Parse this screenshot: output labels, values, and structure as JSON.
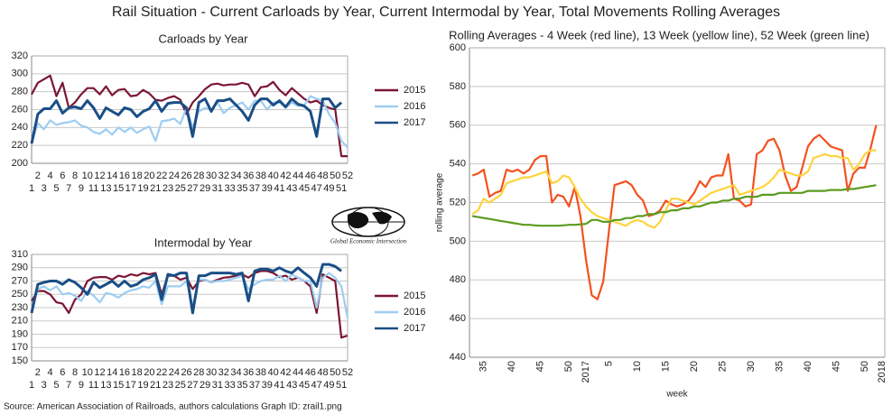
{
  "title": "Rail Situation - Current Carloads by Year, Current Intermodal by Year, Total Movements Rolling Averages",
  "source": "Source: American Association of Railroads, authors calculations   Graph ID: zrail1.png",
  "logo_text": "Global Economic Intersection",
  "chart_data": [
    {
      "type": "line",
      "title": "Carloads by Year",
      "categories": [
        "1",
        "2",
        "3",
        "4",
        "5",
        "6",
        "7",
        "8",
        "9",
        "10",
        "11",
        "12",
        "13",
        "14",
        "15",
        "16",
        "17",
        "18",
        "19",
        "20",
        "21",
        "22",
        "23",
        "24",
        "25",
        "26",
        "27",
        "28",
        "29",
        "30",
        "31",
        "32",
        "33",
        "34",
        "35",
        "36",
        "37",
        "38",
        "39",
        "40",
        "41",
        "42",
        "43",
        "44",
        "45",
        "46",
        "47",
        "48",
        "49",
        "50",
        "51",
        "52"
      ],
      "ylim": [
        200,
        320
      ],
      "yticks": [
        200,
        220,
        240,
        260,
        280,
        300,
        320
      ],
      "grid": true,
      "series": [
        {
          "name": "2015",
          "color": "#7b1633",
          "values": [
            277,
            290,
            294,
            298,
            275,
            290,
            262,
            268,
            277,
            284,
            284,
            277,
            286,
            276,
            282,
            283,
            275,
            276,
            282,
            278,
            271,
            270,
            273,
            275,
            271,
            255,
            268,
            275,
            283,
            288,
            289,
            287,
            288,
            288,
            290,
            288,
            275,
            285,
            286,
            291,
            282,
            276,
            284,
            278,
            272,
            268,
            270,
            265,
            262,
            260,
            208,
            208
          ]
        },
        {
          "name": "2016",
          "color": "#9dcdf2",
          "values": [
            222,
            245,
            238,
            248,
            243,
            245,
            246,
            248,
            242,
            240,
            235,
            233,
            238,
            232,
            240,
            235,
            240,
            234,
            238,
            241,
            225,
            247,
            248,
            250,
            244,
            262,
            240,
            258,
            262,
            260,
            268,
            256,
            262,
            265,
            268,
            260,
            270,
            270,
            260,
            268,
            268,
            262,
            268,
            264,
            265,
            275,
            272,
            270,
            255,
            245,
            225,
            218
          ]
        },
        {
          "name": "2017",
          "color": "#1a4e86",
          "values": [
            222,
            255,
            261,
            261,
            270,
            256,
            262,
            263,
            261,
            270,
            262,
            250,
            262,
            258,
            254,
            262,
            260,
            252,
            258,
            261,
            270,
            258,
            267,
            268,
            268,
            262,
            230,
            268,
            272,
            258,
            270,
            270,
            272,
            265,
            258,
            248,
            265,
            272,
            272,
            265,
            270,
            263,
            272,
            266,
            264,
            258,
            230,
            272,
            272,
            262,
            268,
            null
          ]
        }
      ]
    },
    {
      "type": "line",
      "title": "Intermodal by Year",
      "categories": [
        "1",
        "2",
        "3",
        "4",
        "5",
        "6",
        "7",
        "8",
        "9",
        "10",
        "11",
        "12",
        "13",
        "14",
        "15",
        "16",
        "17",
        "18",
        "19",
        "20",
        "21",
        "22",
        "23",
        "24",
        "25",
        "26",
        "27",
        "28",
        "29",
        "30",
        "31",
        "32",
        "33",
        "34",
        "35",
        "36",
        "37",
        "38",
        "39",
        "40",
        "41",
        "42",
        "43",
        "44",
        "45",
        "46",
        "47",
        "48",
        "49",
        "50",
        "51",
        "52"
      ],
      "ylim": [
        150,
        310
      ],
      "yticks": [
        150,
        170,
        190,
        210,
        230,
        250,
        270,
        290,
        310
      ],
      "grid": true,
      "series": [
        {
          "name": "2015",
          "color": "#7b1633",
          "values": [
            240,
            255,
            255,
            250,
            238,
            236,
            222,
            242,
            250,
            270,
            275,
            276,
            276,
            272,
            278,
            276,
            280,
            278,
            282,
            280,
            282,
            250,
            278,
            278,
            272,
            275,
            258,
            270,
            272,
            268,
            272,
            275,
            276,
            278,
            280,
            275,
            282,
            285,
            285,
            282,
            276,
            278,
            272,
            275,
            270,
            262,
            222,
            280,
            275,
            270,
            185,
            188
          ]
        },
        {
          "name": "2016",
          "color": "#9dcdf2",
          "values": [
            228,
            258,
            262,
            256,
            262,
            250,
            252,
            248,
            240,
            255,
            248,
            238,
            252,
            250,
            245,
            252,
            256,
            258,
            262,
            260,
            270,
            235,
            262,
            262,
            262,
            270,
            232,
            272,
            272,
            268,
            270,
            270,
            272,
            275,
            278,
            258,
            265,
            270,
            272,
            272,
            278,
            270,
            280,
            275,
            270,
            270,
            230,
            275,
            282,
            275,
            262,
            215
          ]
        },
        {
          "name": "2017",
          "color": "#1a4e86",
          "values": [
            222,
            265,
            268,
            270,
            270,
            265,
            272,
            268,
            260,
            250,
            268,
            260,
            265,
            270,
            262,
            270,
            262,
            265,
            272,
            275,
            280,
            242,
            280,
            278,
            282,
            282,
            222,
            278,
            278,
            282,
            282,
            282,
            282,
            280,
            282,
            240,
            285,
            288,
            288,
            285,
            290,
            285,
            282,
            290,
            282,
            275,
            262,
            295,
            295,
            292,
            285,
            null
          ]
        }
      ]
    },
    {
      "type": "line",
      "title": "Rolling Averages - 4 Week (red line), 13 Week (yellow line), 52 Week (green line)",
      "y_label": "rolling average",
      "x_label": "week",
      "categories": [
        null,
        null,
        "35",
        null,
        null,
        null,
        null,
        "40",
        null,
        null,
        null,
        null,
        "45",
        null,
        null,
        null,
        null,
        "50",
        null,
        null,
        "2017",
        null,
        null,
        null,
        "5",
        null,
        null,
        null,
        null,
        "10",
        null,
        null,
        null,
        null,
        "15",
        null,
        null,
        null,
        null,
        "20",
        null,
        null,
        null,
        null,
        "25",
        null,
        null,
        null,
        null,
        "30",
        null,
        null,
        null,
        null,
        "35",
        null,
        null,
        null,
        null,
        "40",
        null,
        null,
        null,
        null,
        "45",
        null,
        null,
        null,
        null,
        "50",
        null,
        null,
        "2018"
      ],
      "ylim": [
        440,
        600
      ],
      "yticks": [
        440,
        460,
        480,
        500,
        520,
        540,
        560,
        580,
        600
      ],
      "grid": true,
      "series": [
        {
          "color": "#f4511e",
          "values": [
            534,
            535,
            537,
            523,
            525,
            526,
            537,
            536,
            537,
            535,
            537,
            542,
            544,
            544,
            520,
            524,
            523,
            518,
            528,
            513,
            490,
            472,
            470,
            479,
            505,
            529,
            530,
            531,
            529,
            524,
            521,
            513,
            514,
            516,
            521,
            519,
            518,
            519,
            521,
            525,
            531,
            528,
            533,
            534,
            534,
            545,
            522,
            521,
            518,
            519,
            545,
            547,
            552,
            553,
            547,
            534,
            526,
            528,
            538,
            549,
            553,
            555,
            552,
            549,
            548,
            547,
            526,
            535,
            538,
            538,
            548,
            560,
            null
          ]
        },
        {
          "color": "#ffd33d",
          "values": [
            514,
            516,
            522,
            520,
            522,
            524,
            530,
            531,
            532,
            533,
            533,
            534,
            535,
            536,
            530,
            531,
            534,
            533,
            528,
            522,
            518,
            515,
            513,
            512,
            511,
            510,
            509,
            508,
            510,
            511,
            510,
            508,
            507,
            510,
            516,
            522,
            522,
            521,
            520,
            519,
            521,
            523,
            525,
            526,
            527,
            528,
            529,
            524,
            525,
            526,
            527,
            528,
            530,
            533,
            537,
            536,
            535,
            534,
            534,
            536,
            543,
            544,
            545,
            544,
            544,
            543,
            543,
            537,
            540,
            545,
            547,
            547,
            null
          ]
        },
        {
          "color": "#5b9b1f",
          "values": [
            513,
            512.5,
            512,
            511.5,
            511,
            510.5,
            510,
            509.5,
            509,
            508.5,
            508.5,
            508.2,
            508,
            508,
            508,
            508,
            508.2,
            508.5,
            508.5,
            508.7,
            509,
            511,
            511,
            510,
            510,
            511,
            511,
            512,
            512,
            513,
            513,
            514,
            514,
            515,
            515,
            516,
            516,
            517,
            517,
            518,
            518,
            519,
            520,
            520,
            521,
            521,
            522,
            522,
            523,
            523,
            523,
            524,
            524,
            524,
            525,
            525,
            525,
            525,
            525,
            526,
            526,
            526,
            526,
            526.5,
            526.5,
            526.5,
            527,
            527,
            527.5,
            528,
            528.5,
            529,
            null
          ]
        }
      ]
    }
  ]
}
